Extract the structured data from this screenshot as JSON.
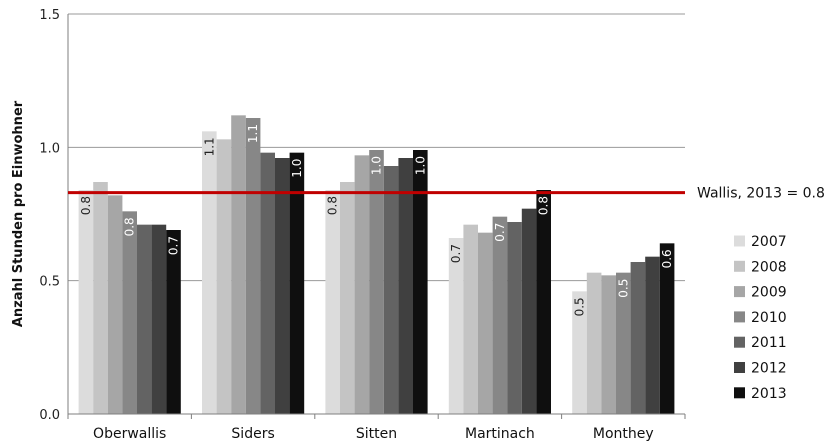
{
  "chart_data": {
    "type": "bar",
    "ylabel": "Anzahl Stunden pro Einwohner",
    "ylim": [
      0,
      1.5
    ],
    "yticks": [
      "0.0",
      "0.5",
      "1.0",
      "1.5"
    ],
    "grid": true,
    "legend_position": "right",
    "categories": [
      "Oberwallis",
      "Siders",
      "Sitten",
      "Martinach",
      "Monthey"
    ],
    "series": [
      {
        "name": "2007",
        "color": "#dcdcdc",
        "values": [
          0.84,
          1.06,
          0.84,
          0.66,
          0.46
        ]
      },
      {
        "name": "2008",
        "color": "#c4c4c4",
        "values": [
          0.87,
          1.03,
          0.87,
          0.71,
          0.53
        ]
      },
      {
        "name": "2009",
        "color": "#a6a6a6",
        "values": [
          0.82,
          1.12,
          0.97,
          0.68,
          0.52
        ]
      },
      {
        "name": "2010",
        "color": "#878787",
        "values": [
          0.76,
          1.11,
          0.99,
          0.74,
          0.53
        ]
      },
      {
        "name": "2011",
        "color": "#636363",
        "values": [
          0.71,
          0.98,
          0.93,
          0.72,
          0.57
        ]
      },
      {
        "name": "2012",
        "color": "#404040",
        "values": [
          0.71,
          0.96,
          0.96,
          0.77,
          0.59
        ]
      },
      {
        "name": "2013",
        "color": "#0f0f0f",
        "values": [
          0.69,
          0.98,
          0.99,
          0.84,
          0.64
        ]
      }
    ],
    "data_labels": [
      {
        "category": 0,
        "series": 0,
        "text": "0.8"
      },
      {
        "category": 0,
        "series": 3,
        "text": "0.8"
      },
      {
        "category": 0,
        "series": 6,
        "text": "0.7"
      },
      {
        "category": 1,
        "series": 0,
        "text": "1.1"
      },
      {
        "category": 1,
        "series": 3,
        "text": "1.1"
      },
      {
        "category": 1,
        "series": 6,
        "text": "1.0"
      },
      {
        "category": 2,
        "series": 0,
        "text": "0.8"
      },
      {
        "category": 2,
        "series": 3,
        "text": "1.0"
      },
      {
        "category": 2,
        "series": 6,
        "text": "1.0"
      },
      {
        "category": 3,
        "series": 0,
        "text": "0.7"
      },
      {
        "category": 3,
        "series": 3,
        "text": "0.7"
      },
      {
        "category": 3,
        "series": 6,
        "text": "0.8"
      },
      {
        "category": 4,
        "series": 0,
        "text": "0.5"
      },
      {
        "category": 4,
        "series": 3,
        "text": "0.5"
      },
      {
        "category": 4,
        "series": 6,
        "text": "0.6"
      }
    ],
    "reference_line": {
      "value": 0.83,
      "label": "Wallis, 2013 = 0.8",
      "color": "#c00000"
    }
  }
}
